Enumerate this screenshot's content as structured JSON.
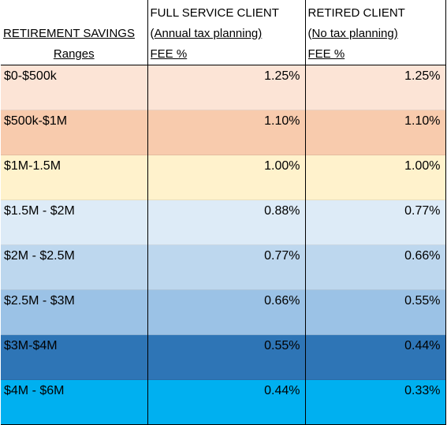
{
  "table": {
    "header": {
      "col1": {
        "line1": "",
        "line2": "RETIREMENT SAVINGS",
        "line3": "Ranges"
      },
      "col2": {
        "line1": "FULL SERVICE CLIENT",
        "line2": "(Annual tax planning)",
        "line3": "FEE %"
      },
      "col3": {
        "line1": "RETIRED CLIENT",
        "line2": "(No tax planning)",
        "line3": "FEE %"
      }
    },
    "rows": [
      {
        "range": "$0-$500k",
        "full_service": "1.25%",
        "retired": "1.25%",
        "color": "#fce4d6"
      },
      {
        "range": "$500k-$1M",
        "full_service": "1.10%",
        "retired": "1.10%",
        "color": "#f8cbad"
      },
      {
        "range": "$1M-1.5M",
        "full_service": "1.00%",
        "retired": "1.00%",
        "color": "#fff2cc"
      },
      {
        "range": "$1.5M - $2M",
        "full_service": "0.88%",
        "retired": "0.77%",
        "color": "#ddebf7"
      },
      {
        "range": "$2M - $2.5M",
        "full_service": "0.77%",
        "retired": "0.66%",
        "color": "#bdd7ee"
      },
      {
        "range": "$2.5M - $3M",
        "full_service": "0.66%",
        "retired": "0.55%",
        "color": "#9bc2e6"
      },
      {
        "range": "$3M-$4M",
        "full_service": "0.55%",
        "retired": "0.44%",
        "color": "#2e75b6"
      },
      {
        "range": "$4M - $6M",
        "full_service": "0.44%",
        "retired": "0.33%",
        "color": "#00b0f0"
      }
    ]
  }
}
